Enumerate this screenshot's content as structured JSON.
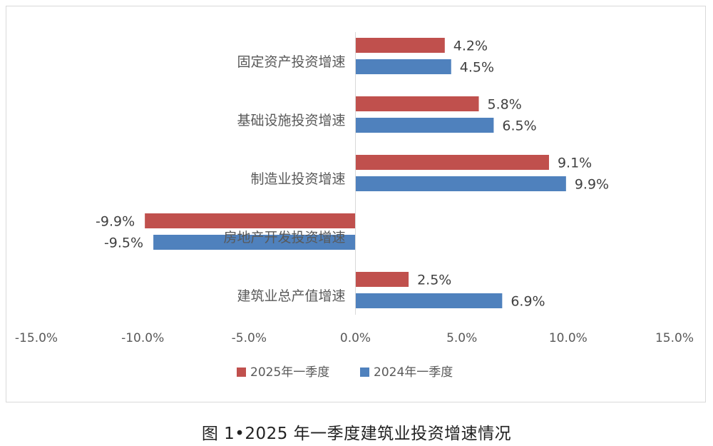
{
  "chart_data": {
    "type": "bar",
    "orientation": "horizontal",
    "categories": [
      "固定资产投资增速",
      "基础设施投资增速",
      "制造业投资增速",
      "房地产开发投资增速",
      "建筑业总产值增速"
    ],
    "series": [
      {
        "name": "2025年一季度",
        "values": [
          4.2,
          5.8,
          9.1,
          -9.9,
          2.5
        ],
        "labels": [
          "4.2%",
          "5.8%",
          "9.1%",
          "-9.9%",
          "2.5%"
        ],
        "color": "#c0504d"
      },
      {
        "name": "2024年一季度",
        "values": [
          4.5,
          6.5,
          9.9,
          -9.5,
          6.9
        ],
        "labels": [
          "4.5%",
          "6.5%",
          "9.9%",
          "-9.5%",
          "6.9%"
        ],
        "color": "#4f81bd"
      }
    ],
    "xlim": [
      -15,
      15
    ],
    "x_ticks": [
      -15,
      -10,
      -5,
      0,
      5,
      10,
      15
    ],
    "x_tick_labels": [
      "-15.0%",
      "-10.0%",
      "-5.0%",
      "0.0%",
      "5.0%",
      "10.0%",
      "15.0%"
    ],
    "grid": false,
    "legend_position": "bottom"
  },
  "caption": "图 1•2025 年一季度建筑业投资增速情况"
}
